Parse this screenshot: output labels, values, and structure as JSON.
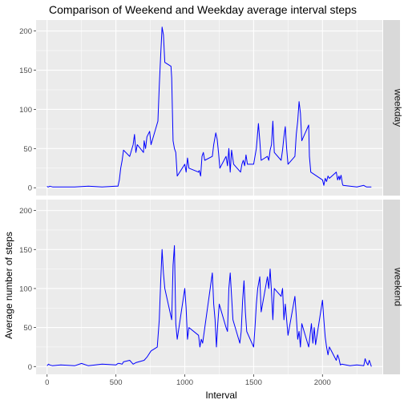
{
  "chart_data": {
    "type": "line",
    "title": "Comparison of Weekend and Weekday average interval steps",
    "xlabel": "Interval",
    "ylabel": "Average number of steps",
    "xlim": [
      -80,
      2435
    ],
    "ylim": [
      -10,
      214
    ],
    "x_ticks": [
      0,
      500,
      1000,
      1500,
      2000
    ],
    "y_ticks": [
      0,
      50,
      100,
      150,
      200
    ],
    "grid": true,
    "line_color": "#0000ff",
    "panel_background": "#ebebeb",
    "strip_background": "#d9d9d9",
    "facets": [
      {
        "label": "weekday",
        "points": [
          [
            0,
            2
          ],
          [
            5,
            1
          ],
          [
            10,
            1
          ],
          [
            20,
            2
          ],
          [
            40,
            1
          ],
          [
            100,
            1
          ],
          [
            200,
            1
          ],
          [
            300,
            2
          ],
          [
            400,
            1
          ],
          [
            500,
            2
          ],
          [
            515,
            2
          ],
          [
            525,
            10
          ],
          [
            535,
            25
          ],
          [
            545,
            35
          ],
          [
            555,
            48
          ],
          [
            600,
            40
          ],
          [
            625,
            55
          ],
          [
            635,
            68
          ],
          [
            645,
            45
          ],
          [
            655,
            55
          ],
          [
            700,
            45
          ],
          [
            705,
            60
          ],
          [
            715,
            50
          ],
          [
            725,
            65
          ],
          [
            745,
            72
          ],
          [
            755,
            55
          ],
          [
            805,
            85
          ],
          [
            815,
            130
          ],
          [
            825,
            170
          ],
          [
            835,
            205
          ],
          [
            845,
            195
          ],
          [
            855,
            160
          ],
          [
            900,
            155
          ],
          [
            905,
            140
          ],
          [
            915,
            60
          ],
          [
            925,
            50
          ],
          [
            935,
            45
          ],
          [
            945,
            15
          ],
          [
            1000,
            30
          ],
          [
            1010,
            20
          ],
          [
            1020,
            38
          ],
          [
            1030,
            25
          ],
          [
            1100,
            20
          ],
          [
            1105,
            22
          ],
          [
            1115,
            15
          ],
          [
            1125,
            40
          ],
          [
            1135,
            45
          ],
          [
            1145,
            35
          ],
          [
            1200,
            40
          ],
          [
            1210,
            55
          ],
          [
            1225,
            70
          ],
          [
            1235,
            62
          ],
          [
            1245,
            45
          ],
          [
            1255,
            25
          ],
          [
            1300,
            40
          ],
          [
            1310,
            28
          ],
          [
            1320,
            50
          ],
          [
            1330,
            20
          ],
          [
            1340,
            48
          ],
          [
            1355,
            30
          ],
          [
            1405,
            20
          ],
          [
            1415,
            30
          ],
          [
            1425,
            35
          ],
          [
            1435,
            28
          ],
          [
            1445,
            42
          ],
          [
            1455,
            30
          ],
          [
            1500,
            30
          ],
          [
            1510,
            40
          ],
          [
            1520,
            50
          ],
          [
            1535,
            82
          ],
          [
            1545,
            60
          ],
          [
            1555,
            35
          ],
          [
            1600,
            40
          ],
          [
            1610,
            35
          ],
          [
            1620,
            48
          ],
          [
            1630,
            55
          ],
          [
            1640,
            85
          ],
          [
            1650,
            45
          ],
          [
            1700,
            35
          ],
          [
            1710,
            48
          ],
          [
            1720,
            65
          ],
          [
            1730,
            78
          ],
          [
            1740,
            50
          ],
          [
            1750,
            30
          ],
          [
            1800,
            40
          ],
          [
            1810,
            68
          ],
          [
            1820,
            85
          ],
          [
            1830,
            110
          ],
          [
            1840,
            95
          ],
          [
            1850,
            60
          ],
          [
            1900,
            80
          ],
          [
            1905,
            40
          ],
          [
            1915,
            20
          ],
          [
            2000,
            10
          ],
          [
            2010,
            3
          ],
          [
            2020,
            12
          ],
          [
            2030,
            8
          ],
          [
            2040,
            15
          ],
          [
            2050,
            12
          ],
          [
            2100,
            20
          ],
          [
            2110,
            10
          ],
          [
            2120,
            15
          ],
          [
            2125,
            10
          ],
          [
            2135,
            16
          ],
          [
            2145,
            5
          ],
          [
            2150,
            3
          ],
          [
            2200,
            2
          ],
          [
            2250,
            1
          ],
          [
            2300,
            3
          ],
          [
            2310,
            2
          ],
          [
            2320,
            1
          ],
          [
            2355,
            1
          ]
        ]
      },
      {
        "label": "weekend",
        "points": [
          [
            0,
            1
          ],
          [
            5,
            2
          ],
          [
            10,
            3
          ],
          [
            20,
            2
          ],
          [
            40,
            1
          ],
          [
            100,
            2
          ],
          [
            200,
            1
          ],
          [
            250,
            4
          ],
          [
            300,
            1
          ],
          [
            400,
            3
          ],
          [
            500,
            2
          ],
          [
            515,
            4
          ],
          [
            525,
            4
          ],
          [
            545,
            3
          ],
          [
            555,
            6
          ],
          [
            600,
            8
          ],
          [
            625,
            3
          ],
          [
            645,
            5
          ],
          [
            705,
            8
          ],
          [
            725,
            12
          ],
          [
            755,
            20
          ],
          [
            800,
            25
          ],
          [
            815,
            60
          ],
          [
            825,
            110
          ],
          [
            835,
            150
          ],
          [
            845,
            120
          ],
          [
            855,
            100
          ],
          [
            905,
            60
          ],
          [
            915,
            130
          ],
          [
            925,
            155
          ],
          [
            935,
            55
          ],
          [
            945,
            35
          ],
          [
            1000,
            100
          ],
          [
            1010,
            75
          ],
          [
            1020,
            35
          ],
          [
            1030,
            50
          ],
          [
            1100,
            40
          ],
          [
            1110,
            25
          ],
          [
            1120,
            35
          ],
          [
            1130,
            30
          ],
          [
            1200,
            120
          ],
          [
            1210,
            80
          ],
          [
            1220,
            60
          ],
          [
            1230,
            25
          ],
          [
            1240,
            55
          ],
          [
            1250,
            80
          ],
          [
            1300,
            50
          ],
          [
            1310,
            45
          ],
          [
            1320,
            100
          ],
          [
            1330,
            120
          ],
          [
            1340,
            90
          ],
          [
            1350,
            60
          ],
          [
            1400,
            30
          ],
          [
            1410,
            45
          ],
          [
            1420,
            85
          ],
          [
            1430,
            110
          ],
          [
            1440,
            70
          ],
          [
            1450,
            45
          ],
          [
            1500,
            25
          ],
          [
            1510,
            50
          ],
          [
            1520,
            80
          ],
          [
            1530,
            100
          ],
          [
            1545,
            115
          ],
          [
            1555,
            70
          ],
          [
            1600,
            115
          ],
          [
            1610,
            100
          ],
          [
            1620,
            125
          ],
          [
            1630,
            95
          ],
          [
            1640,
            60
          ],
          [
            1650,
            100
          ],
          [
            1700,
            90
          ],
          [
            1710,
            100
          ],
          [
            1720,
            60
          ],
          [
            1730,
            80
          ],
          [
            1740,
            60
          ],
          [
            1750,
            40
          ],
          [
            1800,
            90
          ],
          [
            1810,
            65
          ],
          [
            1820,
            35
          ],
          [
            1830,
            45
          ],
          [
            1840,
            25
          ],
          [
            1850,
            55
          ],
          [
            1900,
            25
          ],
          [
            1910,
            40
          ],
          [
            1920,
            55
          ],
          [
            1930,
            30
          ],
          [
            1940,
            50
          ],
          [
            1950,
            28
          ],
          [
            2000,
            85
          ],
          [
            2010,
            60
          ],
          [
            2020,
            38
          ],
          [
            2030,
            25
          ],
          [
            2040,
            15
          ],
          [
            2050,
            25
          ],
          [
            2100,
            8
          ],
          [
            2110,
            15
          ],
          [
            2120,
            10
          ],
          [
            2130,
            2
          ],
          [
            2140,
            3
          ],
          [
            2200,
            1
          ],
          [
            2250,
            2
          ],
          [
            2300,
            1
          ],
          [
            2310,
            10
          ],
          [
            2320,
            5
          ],
          [
            2330,
            2
          ],
          [
            2340,
            8
          ],
          [
            2355,
            0
          ]
        ]
      }
    ]
  }
}
